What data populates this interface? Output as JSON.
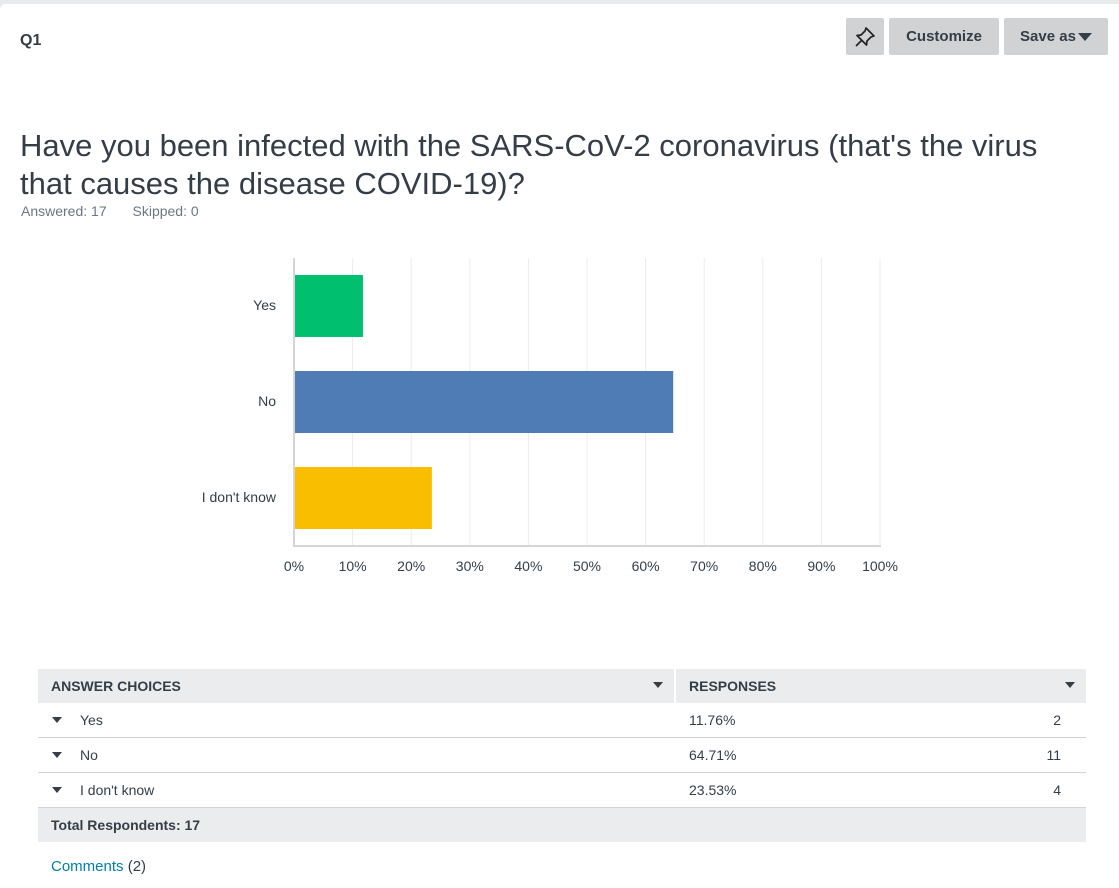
{
  "question": {
    "number": "Q1",
    "title": "Have you been infected with the SARS-CoV-2 coronavirus (that's the virus that causes the disease COVID-19)?",
    "answered": "Answered: 17",
    "skipped": "Skipped: 0"
  },
  "toolbar": {
    "pin_icon": "pushpin-icon",
    "customize_label": "Customize",
    "saveas_label": "Save as"
  },
  "chart_data": {
    "type": "bar",
    "orientation": "horizontal",
    "categories": [
      "Yes",
      "No",
      "I don't know"
    ],
    "values": [
      11.76,
      64.71,
      23.53
    ],
    "colors": [
      "#00bf6f",
      "#507cb6",
      "#f9be00"
    ],
    "xlim": [
      0,
      100
    ],
    "xticks": [
      "0%",
      "10%",
      "20%",
      "30%",
      "40%",
      "50%",
      "60%",
      "70%",
      "80%",
      "90%",
      "100%"
    ],
    "grid": true,
    "title": "",
    "xlabel": "",
    "ylabel": ""
  },
  "table": {
    "headers": {
      "choices": "ANSWER CHOICES",
      "responses": "RESPONSES"
    },
    "rows": [
      {
        "choice": "Yes",
        "percent": "11.76%",
        "count": "2"
      },
      {
        "choice": "No",
        "percent": "64.71%",
        "count": "11"
      },
      {
        "choice": "I don't know",
        "percent": "23.53%",
        "count": "4"
      }
    ],
    "total": "Total Respondents: 17"
  },
  "comments": {
    "link": "Comments",
    "count": "(2)"
  }
}
